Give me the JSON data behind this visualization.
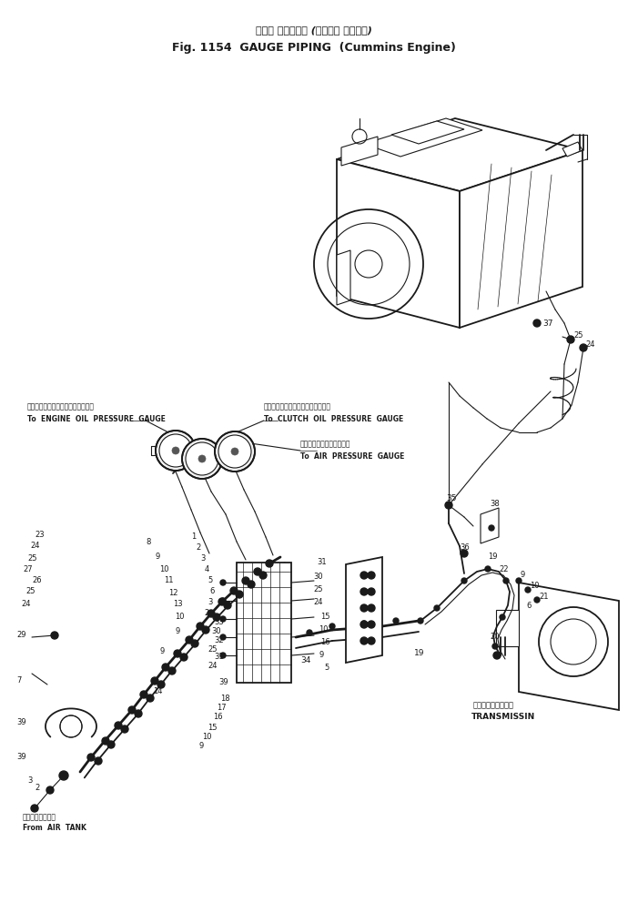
{
  "title_jp": "ゲージ パイピング (カミンズ エンジン)",
  "title_en": "Fig. 1154  GAUGE PIPING  (Cummins Engine)",
  "bg_color": "#ffffff",
  "ink_color": "#1a1a1a",
  "labels": {
    "engine_oil_jp": "エンジンオイルプレッシャゲージへ",
    "engine_oil_en": "To  ENGINE  OIL  PRESSURE  GAUGE",
    "clutch_oil_jp": "クラッチオイルプレッシャゲージへ",
    "clutch_oil_en": "To  CLUTCH  OIL  PRESSURE  GAUGE",
    "air_pressure_jp": "エアープレッシャゲージへ",
    "air_pressure_en": "To  AIR  PRESSURE  GAUGE",
    "transmission_jp": "トランスミッション",
    "transmission_en": "TRANSMISSIN",
    "air_tank_jp": "エアータンクから",
    "air_tank_en": "From  AIR  TANK"
  },
  "fig_width": 6.9,
  "fig_height": 10.14,
  "dpi": 100
}
